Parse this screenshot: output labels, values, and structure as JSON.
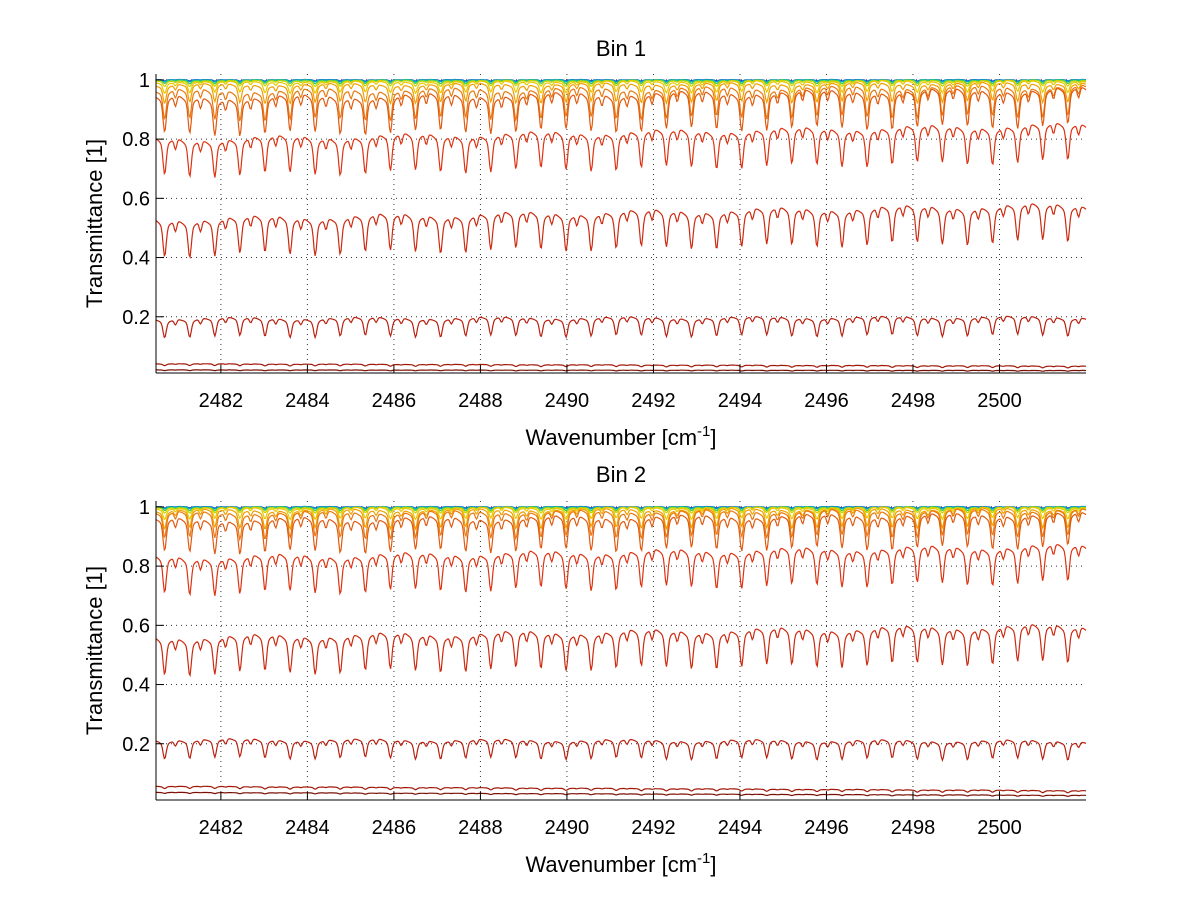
{
  "chart_data": [
    {
      "type": "line",
      "title": "Bin 1",
      "xlabel": "Wavenumber [cm",
      "xlabel_sup": "-1",
      "xlabel_end": "]",
      "ylabel": "Transmittance [1]",
      "xlim": [
        2480.5,
        2502
      ],
      "ylim": [
        0.01,
        1.02
      ],
      "xticks": [
        2482,
        2484,
        2486,
        2488,
        2490,
        2492,
        2494,
        2496,
        2498,
        2500
      ],
      "xtick_labels": [
        "2482",
        "2484",
        "2486",
        "2488",
        "2490",
        "2492",
        "2494",
        "2496",
        "2498",
        "2500"
      ],
      "yticks": [
        0.2,
        0.4,
        0.6,
        0.8,
        1
      ],
      "ytick_labels": [
        "0.2",
        "0.4",
        "0.6",
        "0.8",
        "1"
      ],
      "grid": true,
      "line_spacing_cm1": 0.58,
      "series": [
        {
          "baseline": [
            1.0,
            1.0
          ],
          "depth": 0.004,
          "color": "#1f3fbf"
        },
        {
          "baseline": [
            0.999,
            0.999
          ],
          "depth": 0.006,
          "color": "#00a8d8"
        },
        {
          "baseline": [
            0.997,
            0.997
          ],
          "depth": 0.01,
          "color": "#33cc66"
        },
        {
          "baseline": [
            0.993,
            0.994
          ],
          "depth": 0.015,
          "color": "#c8d400"
        },
        {
          "baseline": [
            0.985,
            0.988
          ],
          "depth": 0.03,
          "color": "#e8c800"
        },
        {
          "baseline": [
            0.97,
            0.975
          ],
          "depth": 0.05,
          "color": "#f0a000"
        },
        {
          "baseline": [
            0.94,
            0.955
          ],
          "depth": 0.08,
          "color": "#e87a10"
        },
        {
          "baseline": [
            0.91,
            0.94
          ],
          "depth": 0.1,
          "color": "#e05a10"
        },
        {
          "baseline": [
            0.77,
            0.82
          ],
          "depth": 0.1,
          "color": "#dd3311"
        },
        {
          "baseline": [
            0.5,
            0.55
          ],
          "depth": 0.1,
          "color": "#cc2a10"
        },
        {
          "baseline": [
            0.18,
            0.185
          ],
          "depth": 0.05,
          "color": "#b82010"
        },
        {
          "baseline": [
            0.04,
            0.032
          ],
          "depth": 0.005,
          "color": "#a01808"
        },
        {
          "baseline": [
            0.02,
            0.018
          ],
          "depth": 0.002,
          "color": "#7a1005"
        }
      ]
    },
    {
      "type": "line",
      "title": "Bin 2",
      "xlabel": "Wavenumber [cm",
      "xlabel_sup": "-1",
      "xlabel_end": "]",
      "ylabel": "Transmittance [1]",
      "xlim": [
        2480.5,
        2502
      ],
      "ylim": [
        0.01,
        1.02
      ],
      "xticks": [
        2482,
        2484,
        2486,
        2488,
        2490,
        2492,
        2494,
        2496,
        2498,
        2500
      ],
      "xtick_labels": [
        "2482",
        "2484",
        "2486",
        "2488",
        "2490",
        "2492",
        "2494",
        "2496",
        "2498",
        "2500"
      ],
      "yticks": [
        0.2,
        0.4,
        0.6,
        0.8,
        1
      ],
      "ytick_labels": [
        "0.2",
        "0.4",
        "0.6",
        "0.8",
        "1"
      ],
      "grid": true,
      "line_spacing_cm1": 0.58,
      "series": [
        {
          "baseline": [
            1.0,
            1.0
          ],
          "depth": 0.004,
          "color": "#1f3fbf"
        },
        {
          "baseline": [
            0.999,
            0.999
          ],
          "depth": 0.006,
          "color": "#00a8d8"
        },
        {
          "baseline": [
            0.997,
            0.997
          ],
          "depth": 0.01,
          "color": "#33cc66"
        },
        {
          "baseline": [
            0.994,
            0.995
          ],
          "depth": 0.015,
          "color": "#c8d400"
        },
        {
          "baseline": [
            0.988,
            0.99
          ],
          "depth": 0.03,
          "color": "#e8c800"
        },
        {
          "baseline": [
            0.975,
            0.98
          ],
          "depth": 0.05,
          "color": "#f0a000"
        },
        {
          "baseline": [
            0.96,
            0.97
          ],
          "depth": 0.07,
          "color": "#e87a10"
        },
        {
          "baseline": [
            0.93,
            0.95
          ],
          "depth": 0.09,
          "color": "#e05a10"
        },
        {
          "baseline": [
            0.8,
            0.84
          ],
          "depth": 0.1,
          "color": "#dd3311"
        },
        {
          "baseline": [
            0.53,
            0.57
          ],
          "depth": 0.1,
          "color": "#cc2a10"
        },
        {
          "baseline": [
            0.2,
            0.195
          ],
          "depth": 0.05,
          "color": "#b82010"
        },
        {
          "baseline": [
            0.055,
            0.04
          ],
          "depth": 0.006,
          "color": "#a01808"
        },
        {
          "baseline": [
            0.035,
            0.025
          ],
          "depth": 0.003,
          "color": "#7a1005"
        }
      ]
    }
  ]
}
